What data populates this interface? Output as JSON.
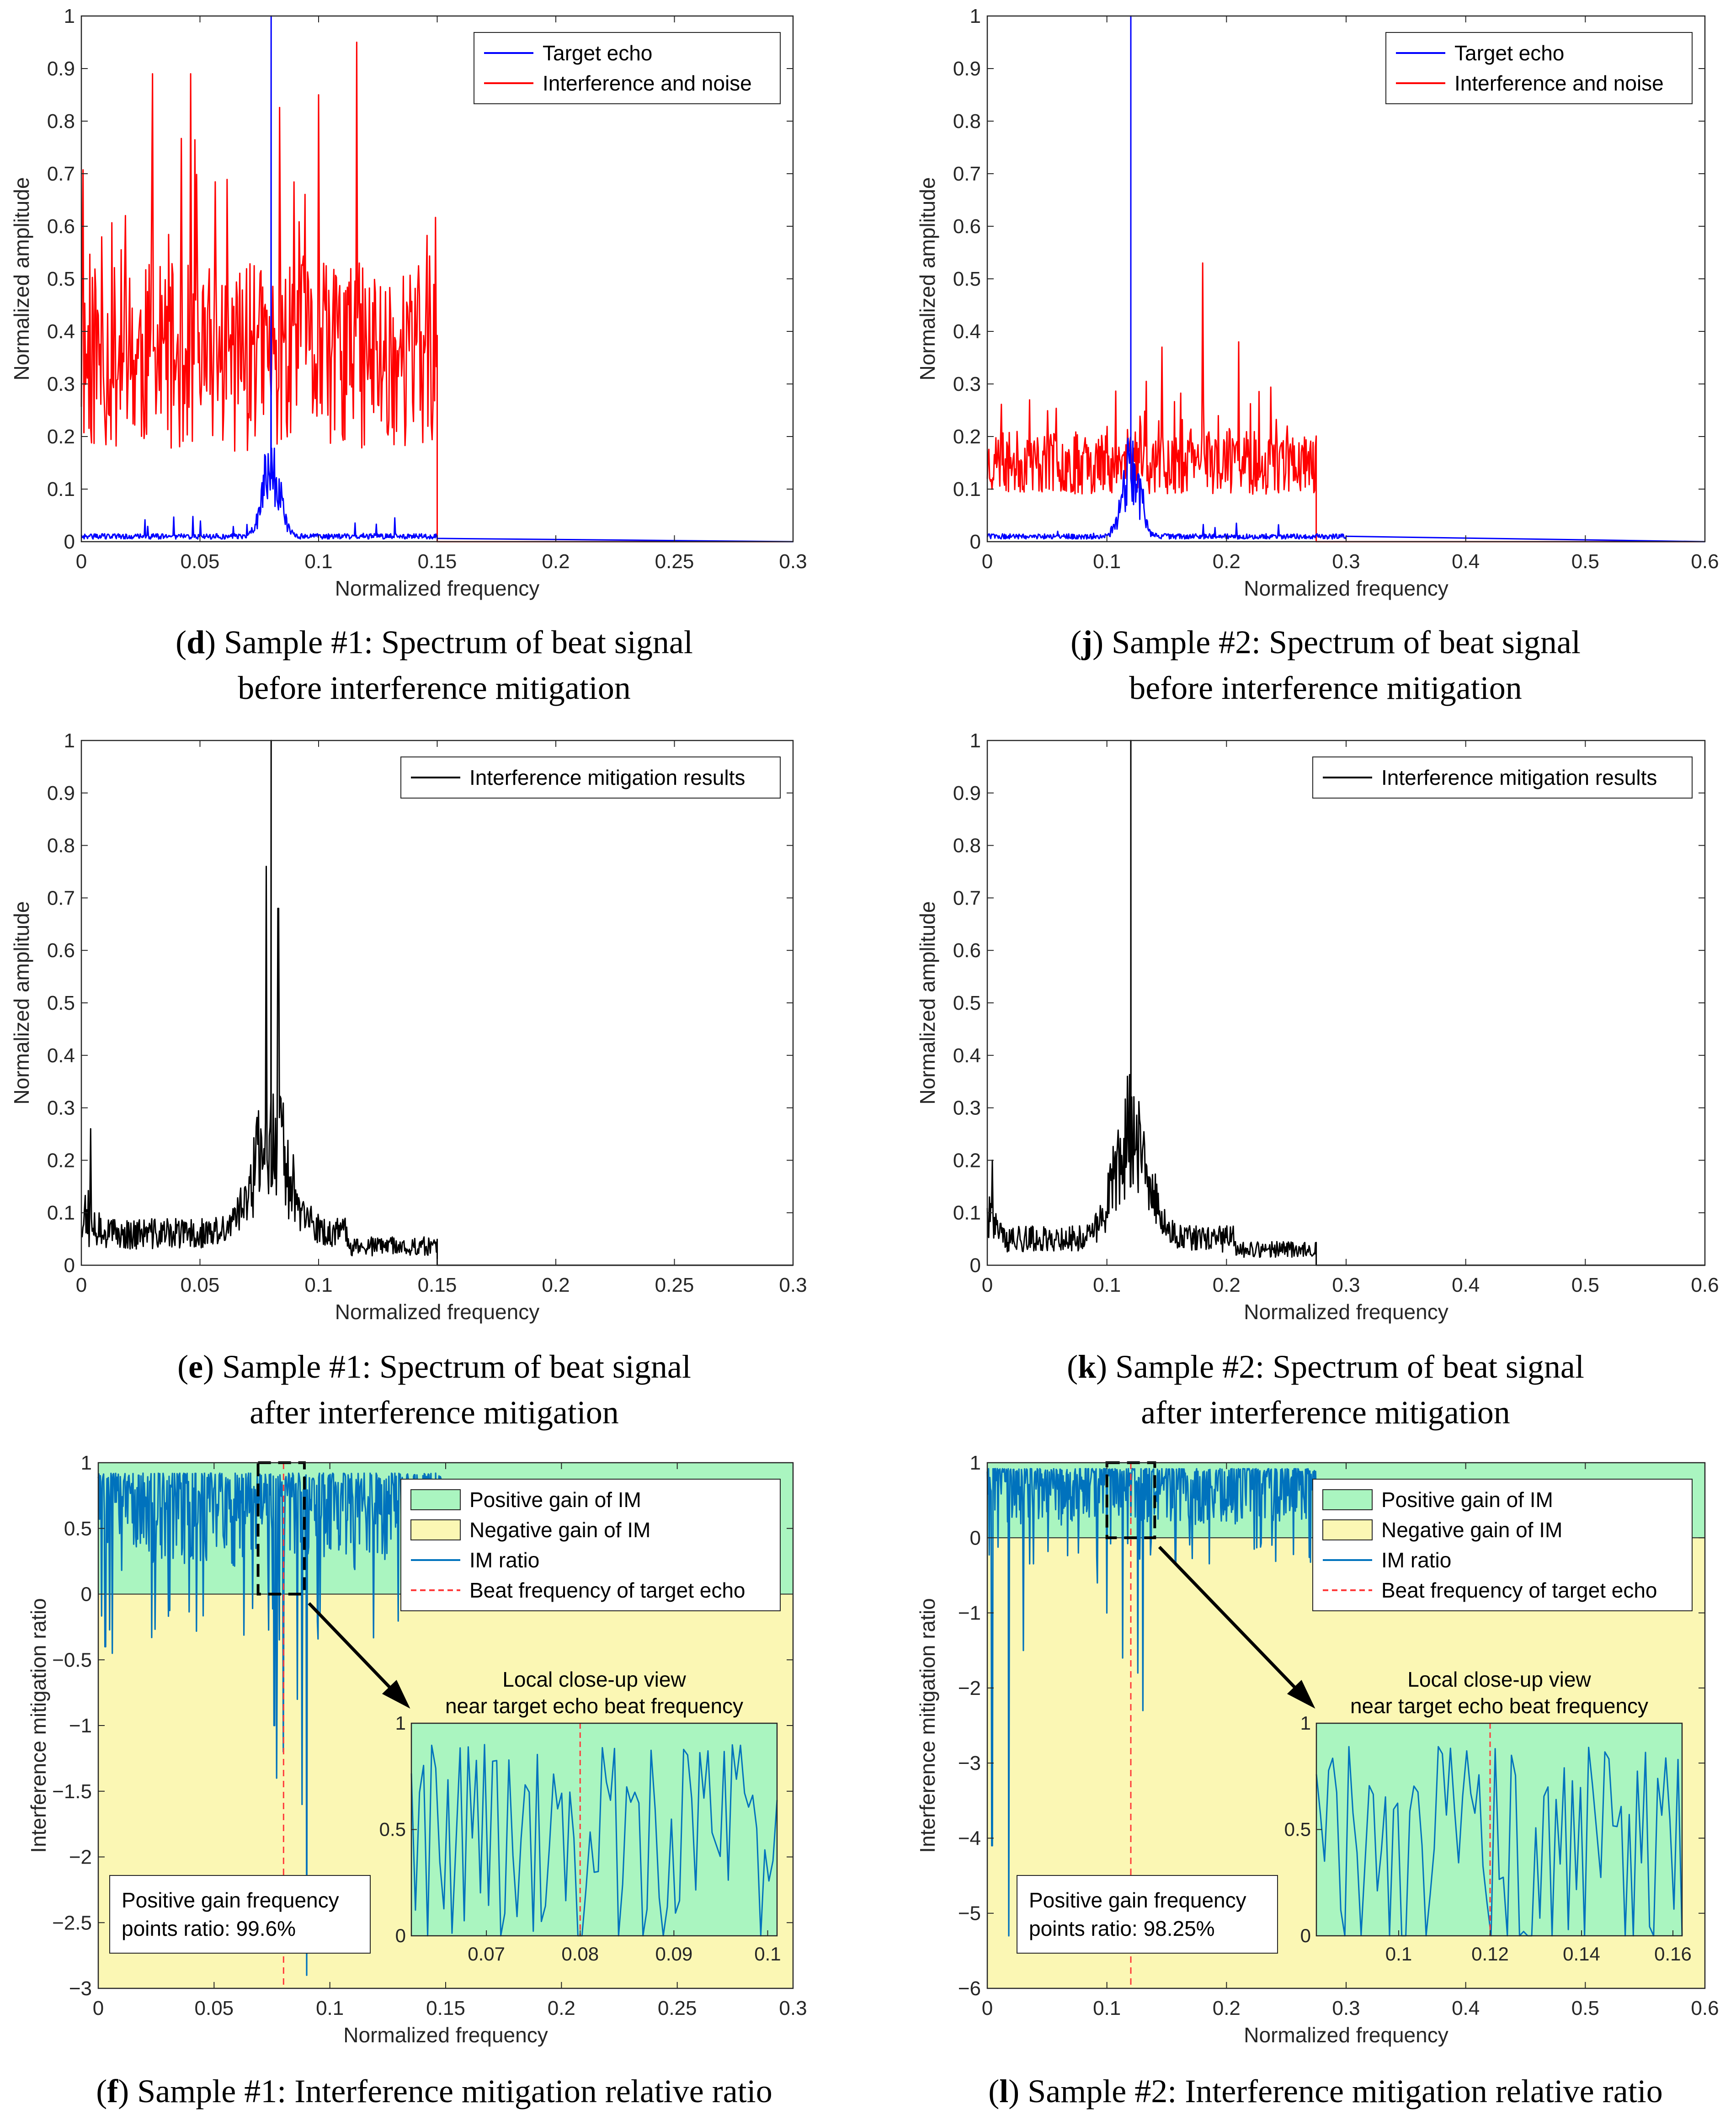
{
  "colors": {
    "target": "#0000ff",
    "interference": "#ff0000",
    "result": "#000000",
    "im_ratio": "#0072bd",
    "positive_fill": "#aaf5c0",
    "negative_fill": "#fbf7b4",
    "beat_line": "#ff3b3b"
  },
  "chart_data": [
    {
      "id": "d",
      "type": "line",
      "title": "Sample #1: Spectrum of beat signal before interference mitigation",
      "xlabel": "Normalized frequency",
      "ylabel": "Normalized amplitude",
      "xlim": [
        0,
        0.3
      ],
      "ylim": [
        0,
        1
      ],
      "xticks": [
        0,
        0.05,
        0.1,
        0.15,
        0.2,
        0.25,
        0.3
      ],
      "xtick_labels": [
        "0",
        "0.05",
        "0.1",
        "0.15",
        "0.2",
        "0.25",
        "0.3"
      ],
      "yticks": [
        0,
        0.1,
        0.2,
        0.3,
        0.4,
        0.5,
        0.6,
        0.7,
        0.8,
        0.9,
        1
      ],
      "ytick_labels": [
        "0",
        "0.1",
        "0.2",
        "0.3",
        "0.4",
        "0.5",
        "0.6",
        "0.7",
        "0.8",
        "0.9",
        "1"
      ],
      "legend": [
        "Target echo",
        "Interference and noise"
      ],
      "series": [
        {
          "name": "Interference and noise",
          "color_key": "interference",
          "band": [
            0,
            0.15
          ],
          "base": 0.35,
          "spread": 0.18,
          "peaks": [
            [
              0.03,
              0.89
            ],
            [
              0.046,
              0.89
            ],
            [
              0.116,
              0.95
            ],
            [
              0.1,
              0.85
            ]
          ]
        },
        {
          "name": "Target echo",
          "color_key": "target",
          "peak_at": 0.08,
          "peak_value": 1.0,
          "floor": 0.01
        }
      ]
    },
    {
      "id": "j",
      "type": "line",
      "title": "Sample #2: Spectrum of beat signal before interference mitigation",
      "xlabel": "Normalized frequency",
      "ylabel": "Normalized amplitude",
      "xlim": [
        0,
        0.6
      ],
      "ylim": [
        0,
        1
      ],
      "xticks": [
        0,
        0.1,
        0.2,
        0.3,
        0.4,
        0.5,
        0.6
      ],
      "xtick_labels": [
        "0",
        "0.1",
        "0.2",
        "0.3",
        "0.4",
        "0.5",
        "0.6"
      ],
      "yticks": [
        0,
        0.1,
        0.2,
        0.3,
        0.4,
        0.5,
        0.6,
        0.7,
        0.8,
        0.9,
        1
      ],
      "ytick_labels": [
        "0",
        "0.1",
        "0.2",
        "0.3",
        "0.4",
        "0.5",
        "0.6",
        "0.7",
        "0.8",
        "0.9",
        "1"
      ],
      "legend": [
        "Target echo",
        "Interference and noise"
      ],
      "series": [
        {
          "name": "Interference and noise",
          "color_key": "interference",
          "band": [
            0,
            0.275
          ],
          "base": 0.15,
          "spread": 0.06,
          "peaks": [
            [
              0.18,
              0.53
            ],
            [
              0.21,
              0.38
            ],
            [
              0.146,
              0.37
            ]
          ]
        },
        {
          "name": "Target echo",
          "color_key": "target",
          "peak_at": 0.12,
          "peak_value": 1.0,
          "floor": 0.01
        }
      ]
    },
    {
      "id": "e",
      "type": "line",
      "title": "Sample #1: Spectrum of beat signal after interference mitigation",
      "xlabel": "Normalized frequency",
      "ylabel": "Normalized amplitude",
      "xlim": [
        0,
        0.3
      ],
      "ylim": [
        0,
        1
      ],
      "xticks": [
        0,
        0.05,
        0.1,
        0.15,
        0.2,
        0.25,
        0.3
      ],
      "xtick_labels": [
        "0",
        "0.05",
        "0.1",
        "0.15",
        "0.2",
        "0.25",
        "0.3"
      ],
      "yticks": [
        0,
        0.1,
        0.2,
        0.3,
        0.4,
        0.5,
        0.6,
        0.7,
        0.8,
        0.9,
        1
      ],
      "ytick_labels": [
        "0",
        "0.1",
        "0.2",
        "0.3",
        "0.4",
        "0.5",
        "0.6",
        "0.7",
        "0.8",
        "0.9",
        "1"
      ],
      "legend": [
        "Interference mitigation results"
      ],
      "series": [
        {
          "name": "Interference mitigation results",
          "color_key": "result",
          "band": [
            0,
            0.15
          ],
          "peak_at": 0.08,
          "peak_value": 1.0,
          "floor": 0.06,
          "secondary_peaks": [
            [
              0.004,
              0.26
            ],
            [
              0.078,
              0.76
            ],
            [
              0.083,
              0.68
            ]
          ]
        }
      ]
    },
    {
      "id": "k",
      "type": "line",
      "title": "Sample #2: Spectrum of beat signal after interference mitigation",
      "xlabel": "Normalized frequency",
      "ylabel": "Normalized amplitude",
      "xlim": [
        0,
        0.6
      ],
      "ylim": [
        0,
        1
      ],
      "xticks": [
        0,
        0.1,
        0.2,
        0.3,
        0.4,
        0.5,
        0.6
      ],
      "xtick_labels": [
        "0",
        "0.1",
        "0.2",
        "0.3",
        "0.4",
        "0.5",
        "0.6"
      ],
      "yticks": [
        0,
        0.1,
        0.2,
        0.3,
        0.4,
        0.5,
        0.6,
        0.7,
        0.8,
        0.9,
        1
      ],
      "ytick_labels": [
        "0",
        "0.1",
        "0.2",
        "0.3",
        "0.4",
        "0.5",
        "0.6",
        "0.7",
        "0.8",
        "0.9",
        "1"
      ],
      "legend": [
        "Interference mitigation results"
      ],
      "series": [
        {
          "name": "Interference mitigation results",
          "color_key": "result",
          "band": [
            0,
            0.275
          ],
          "peak_at": 0.12,
          "peak_value": 1.0,
          "floor": 0.05,
          "secondary_peaks": [
            [
              0.004,
              0.2
            ],
            [
              0.117,
              0.36
            ],
            [
              0.124,
              0.22
            ]
          ]
        }
      ]
    },
    {
      "id": "f",
      "type": "line",
      "title": "Sample #1: Interference mitigation relative ratio",
      "xlabel": "Normalized frequency",
      "ylabel": "Interference mitigation ratio",
      "xlim": [
        0,
        0.3
      ],
      "ylim": [
        -3,
        1
      ],
      "xticks": [
        0,
        0.05,
        0.1,
        0.15,
        0.2,
        0.25,
        0.3
      ],
      "xtick_labels": [
        "0",
        "0.05",
        "0.1",
        "0.15",
        "0.2",
        "0.25",
        "0.3"
      ],
      "yticks": [
        -3,
        -2.5,
        -2,
        -1.5,
        -1,
        -0.5,
        0,
        0.5,
        1
      ],
      "ytick_labels": [
        "−3",
        "−2.5",
        "−2",
        "−1.5",
        "−1",
        "−0.5",
        "0",
        "0.5",
        "1"
      ],
      "legend": [
        "Positive gain of IM",
        "Negative gain of IM",
        "IM ratio",
        "Beat frequency of target echo"
      ],
      "beat_frequency": 0.08,
      "ratio_band": [
        0,
        0.15
      ],
      "dips": [
        [
          0.003,
          -0.4
        ],
        [
          0.006,
          -0.45
        ],
        [
          0.023,
          -0.33
        ],
        [
          0.076,
          -1.0
        ],
        [
          0.077,
          -1.4
        ],
        [
          0.08,
          -1.2
        ],
        [
          0.086,
          -0.8
        ],
        [
          0.088,
          -1.6
        ],
        [
          0.09,
          -2.9
        ]
      ],
      "zoom_box": [
        0.069,
        0.089,
        0,
        1
      ],
      "inset_title": [
        "Local close-up view",
        "near target echo beat frequency"
      ],
      "inset_xlim": [
        0.062,
        0.101
      ],
      "inset_ylim": [
        0,
        1
      ],
      "inset_xticks": [
        0.07,
        0.08,
        0.09,
        0.1
      ],
      "inset_xtick_labels": [
        "0.07",
        "0.08",
        "0.09",
        "0.1"
      ],
      "inset_yticks": [
        0,
        0.5,
        1
      ],
      "inset_ytick_labels": [
        "0",
        "0.5",
        "1"
      ],
      "annotation": [
        "Positive gain frequency",
        "points ratio: 99.6%"
      ]
    },
    {
      "id": "l",
      "type": "line",
      "title": "Sample #2: Interference mitigation relative ratio",
      "xlabel": "Normalized frequency",
      "ylabel": "Interference mitigation ratio",
      "xlim": [
        0,
        0.6
      ],
      "ylim": [
        -6,
        1
      ],
      "xticks": [
        0,
        0.1,
        0.2,
        0.3,
        0.4,
        0.5,
        0.6
      ],
      "xtick_labels": [
        "0",
        "0.1",
        "0.2",
        "0.3",
        "0.4",
        "0.5",
        "0.6"
      ],
      "yticks": [
        -6,
        -5,
        -4,
        -3,
        -2,
        -1,
        0,
        1
      ],
      "ytick_labels": [
        "−6",
        "−5",
        "−4",
        "−3",
        "−2",
        "−1",
        "0",
        "1"
      ],
      "legend": [
        "Positive gain of IM",
        "Negative gain of IM",
        "IM ratio",
        "Beat frequency of target echo"
      ],
      "beat_frequency": 0.12,
      "ratio_band": [
        0,
        0.275
      ],
      "dips": [
        [
          0.004,
          -4.1
        ],
        [
          0.018,
          -5.3
        ],
        [
          0.03,
          -1.5
        ],
        [
          0.1,
          -1.0
        ],
        [
          0.113,
          -1.6
        ],
        [
          0.126,
          -1.8
        ],
        [
          0.13,
          -2.3
        ],
        [
          0.092,
          -0.6
        ]
      ],
      "zoom_box": [
        0.1,
        0.14,
        0,
        1
      ],
      "inset_title": [
        "Local close-up view",
        "near target echo beat frequency"
      ],
      "inset_xlim": [
        0.082,
        0.162
      ],
      "inset_ylim": [
        0,
        1
      ],
      "inset_xticks": [
        0.1,
        0.12,
        0.14,
        0.16
      ],
      "inset_xtick_labels": [
        "0.1",
        "0.12",
        "0.14",
        "0.16"
      ],
      "inset_yticks": [
        0,
        0.5,
        1
      ],
      "inset_ytick_labels": [
        "0",
        "0.5",
        "1"
      ],
      "annotation": [
        "Positive gain frequency",
        "points ratio: 98.25%"
      ]
    }
  ],
  "captions": {
    "d": {
      "letter": "d",
      "line1": ") Sample #1: Spectrum of beat signal",
      "line2": "before interference mitigation"
    },
    "j": {
      "letter": "j",
      "line1": ") Sample #2: Spectrum of beat signal",
      "line2": "before interference mitigation"
    },
    "e": {
      "letter": "e",
      "line1": ") Sample #1: Spectrum of beat signal",
      "line2": "after interference mitigation"
    },
    "k": {
      "letter": "k",
      "line1": ") Sample #2: Spectrum of beat signal",
      "line2": "after interference mitigation"
    },
    "f": {
      "letter": "f",
      "line1": ") Sample #1: Interference mitigation relative ratio"
    },
    "l": {
      "letter": "l",
      "line1": ") Sample #2: Interference mitigation relative ratio"
    }
  }
}
